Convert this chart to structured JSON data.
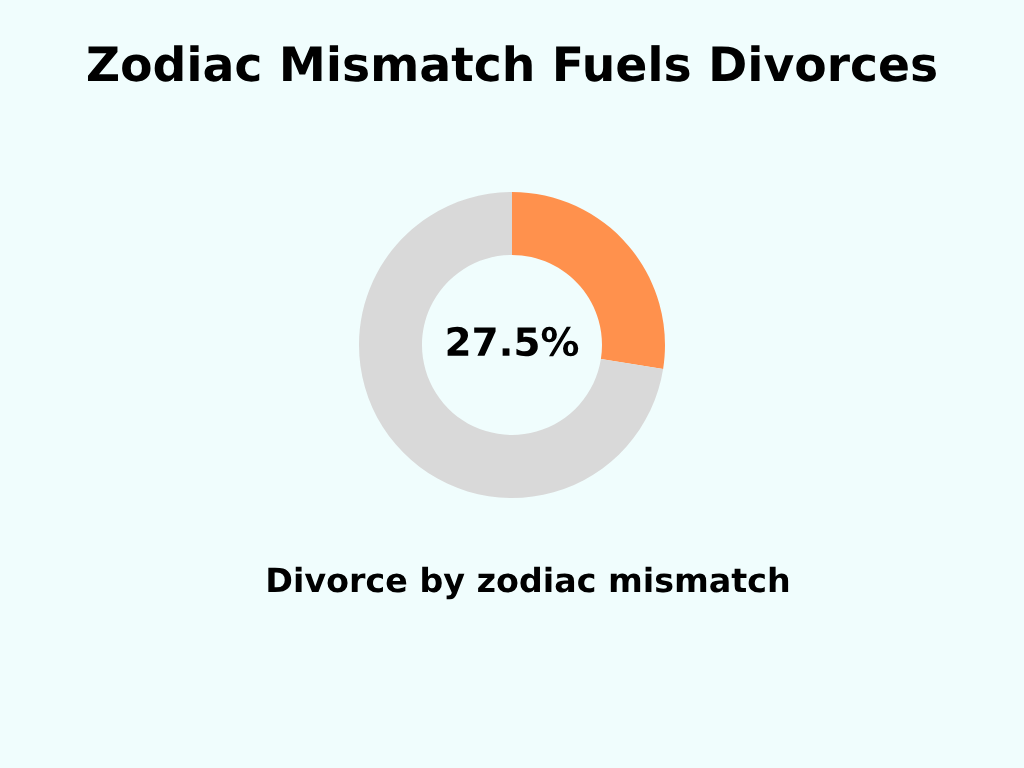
{
  "chart_data": {
    "type": "donut",
    "title": "Zodiac Mismatch Fuels Divorces",
    "categories": [
      null,
      null
    ],
    "annotations": [
      "Divorce by zodiac mismatch"
    ],
    "values": [
      27.5,
      72.5
    ],
    "colors": [
      "#ff914d",
      "#d9d9d9"
    ],
    "value_labels": [
      "27.5%",
      null
    ]
  }
}
